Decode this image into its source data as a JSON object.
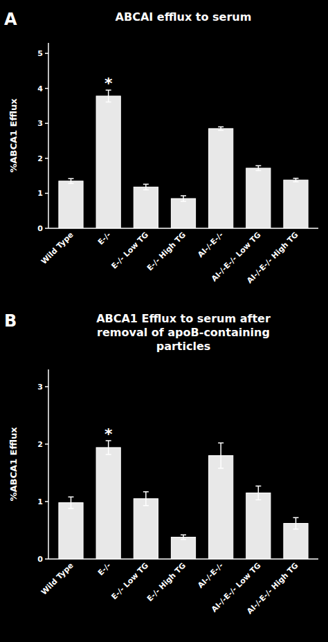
{
  "chart_data": [
    {
      "type": "bar",
      "title": "ABCAI efflux to serum",
      "ylabel": "%ABCA1 Efflux",
      "categories": [
        "Wild Type",
        "E-/-",
        "E-/- Low TG",
        "E-/- High TG",
        "AI-/-E-/-",
        "AI-/-E-/- Low TG",
        "AI-/-E-/- High TG"
      ],
      "values": [
        1.35,
        3.78,
        1.18,
        0.85,
        2.85,
        1.72,
        1.38
      ],
      "errors": [
        0.07,
        0.17,
        0.08,
        0.08,
        0.05,
        0.07,
        0.05
      ],
      "color": "#e8e8e8",
      "ylim": [
        0,
        5.3
      ],
      "yticks": [
        0,
        1,
        2,
        3,
        4,
        5
      ],
      "grid": false,
      "annotations": [
        {
          "text": "*",
          "category": "E-/-"
        },
        {
          "text": "A"
        }
      ]
    },
    {
      "type": "bar",
      "title": "ABCA1 Efflux to serum after\nremoval of apoB-containing\nparticles",
      "ylabel": "%ABCA1 Efflux",
      "categories": [
        "Wild Type",
        "E-/-",
        "E-/- Low TG",
        "E-/- High TG",
        "AI-/-E-/-",
        "AI-/-E-/- Low TG",
        "AI-/-E-/- High TG"
      ],
      "values": [
        0.98,
        1.94,
        1.05,
        0.38,
        1.8,
        1.15,
        0.62
      ],
      "errors": [
        0.1,
        0.12,
        0.12,
        0.04,
        0.22,
        0.12,
        0.1
      ],
      "color": "#e8e8e8",
      "ylim": [
        0,
        3.3
      ],
      "yticks": [
        0,
        1,
        2,
        3
      ],
      "grid": false,
      "annotations": [
        {
          "text": "*",
          "category": "E-/-"
        },
        {
          "text": "B"
        }
      ]
    }
  ]
}
